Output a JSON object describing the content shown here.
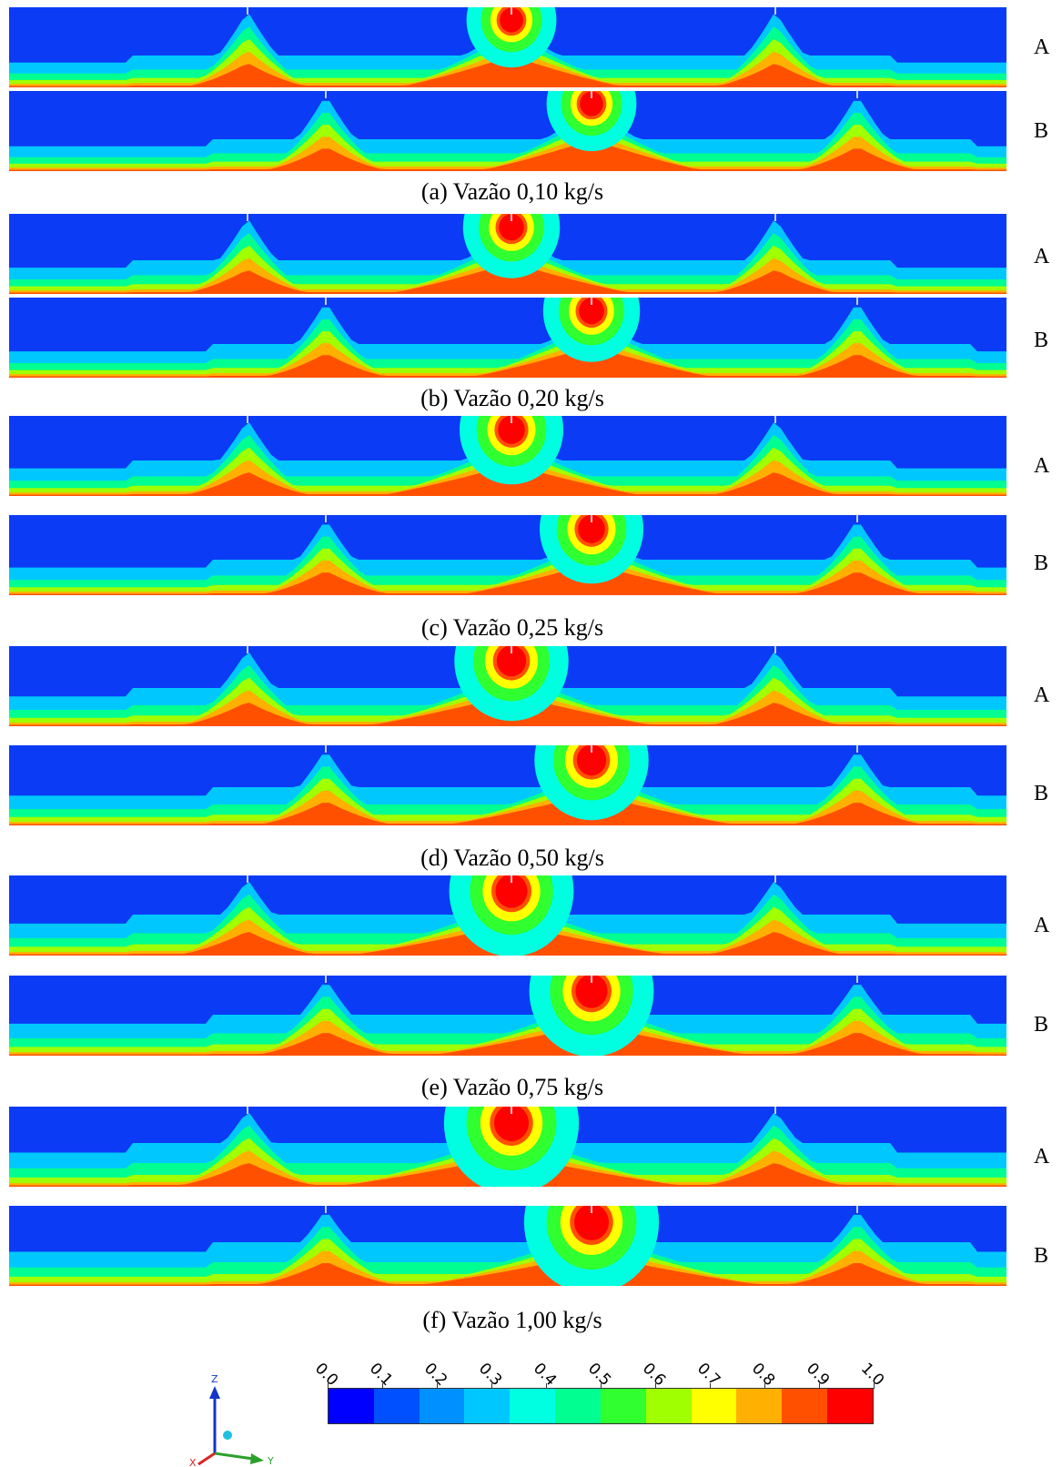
{
  "figure": {
    "cases": [
      {
        "caption": "(a)  Vazão 0,10 kg/s",
        "rows": [
          {
            "label": "A"
          },
          {
            "label": "B"
          }
        ]
      },
      {
        "caption": "(b)  Vazão 0,20 kg/s",
        "rows": [
          {
            "label": "A"
          },
          {
            "label": "B"
          }
        ]
      },
      {
        "caption": "(c)  Vazão 0,25 kg/s",
        "rows": [
          {
            "label": "A"
          },
          {
            "label": "B"
          }
        ]
      },
      {
        "caption": "(d)  Vazão 0,50 kg/s",
        "rows": [
          {
            "label": "A"
          },
          {
            "label": "B"
          }
        ]
      },
      {
        "caption": "(e)  Vazão 0,75 kg/s",
        "rows": [
          {
            "label": "A"
          },
          {
            "label": "B"
          }
        ]
      },
      {
        "caption": "(f)  Vazão 1,00 kg/s",
        "rows": [
          {
            "label": "A"
          },
          {
            "label": "B"
          }
        ]
      }
    ]
  },
  "legend": {
    "ticks": [
      "0.0",
      "0.1",
      "0.2",
      "0.3",
      "0.4",
      "0.5",
      "0.6",
      "0.7",
      "0.8",
      "0.9",
      "1.0"
    ],
    "colors": [
      "#0000ff",
      "#0050ff",
      "#0090ff",
      "#00c8ff",
      "#00ffe0",
      "#00ff90",
      "#30ff30",
      "#a0ff00",
      "#ffff00",
      "#ffb000",
      "#ff5000",
      "#ff0000"
    ]
  },
  "axes_triad": {
    "z": "Z",
    "y": "Y",
    "x": "X"
  }
}
